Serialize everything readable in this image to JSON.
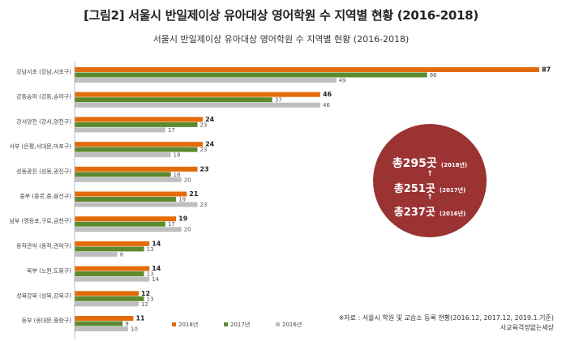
{
  "figure_title": "[그림2] 서울시 반일제이상 유아대상 영어학원 수 지역별 현황 (2016-2018)",
  "chart_data": {
    "type": "bar",
    "orientation": "horizontal",
    "title": "서울시 반일제이상 유아대상 영어학원 수 지역별 현황 (2016-2018)",
    "categories": [
      "강남서초 (강남,서초구)",
      "강동송파 (강동,송파구)",
      "강서양천 (강서,양천구)",
      "서부 (은평,서대문,마포구)",
      "성동광진 (성동,광진구)",
      "중부 (종로,중,용산구)",
      "남부 (영등포,구로,금천구)",
      "동작관악 (동작,관악구)",
      "북부 (노원,도봉구)",
      "성북강북 (성북,강북구)",
      "동부 (동대문,중랑구)"
    ],
    "series": [
      {
        "name": "2018년",
        "color": "#e36c0a",
        "values": [
          87,
          46,
          24,
          24,
          23,
          21,
          19,
          14,
          14,
          12,
          11
        ]
      },
      {
        "name": "2017년",
        "color": "#5d8a2f",
        "values": [
          66,
          37,
          23,
          23,
          18,
          19,
          17,
          13,
          13,
          13,
          9
        ]
      },
      {
        "name": "2016년",
        "color": "#bfbfbf",
        "values": [
          49,
          46,
          17,
          18,
          20,
          23,
          20,
          8,
          14,
          12,
          10
        ]
      }
    ],
    "xlim": [
      0,
      87
    ],
    "grid": false,
    "legend_position": "bottom"
  },
  "summary": {
    "y2018_count": "총295곳",
    "y2018_label": "(2018년)",
    "y2017_count": "총251곳",
    "y2017_label": "(2017년)",
    "y2016_count": "총237곳",
    "y2016_label": "(2016년)",
    "arrow": "↑"
  },
  "source": {
    "line1": "※자료 : 서울시 학원 및 교습소 등록 현황(2016.12, 2017.12, 2019.1.기준)",
    "line2": "사교육걱정없는세상"
  }
}
